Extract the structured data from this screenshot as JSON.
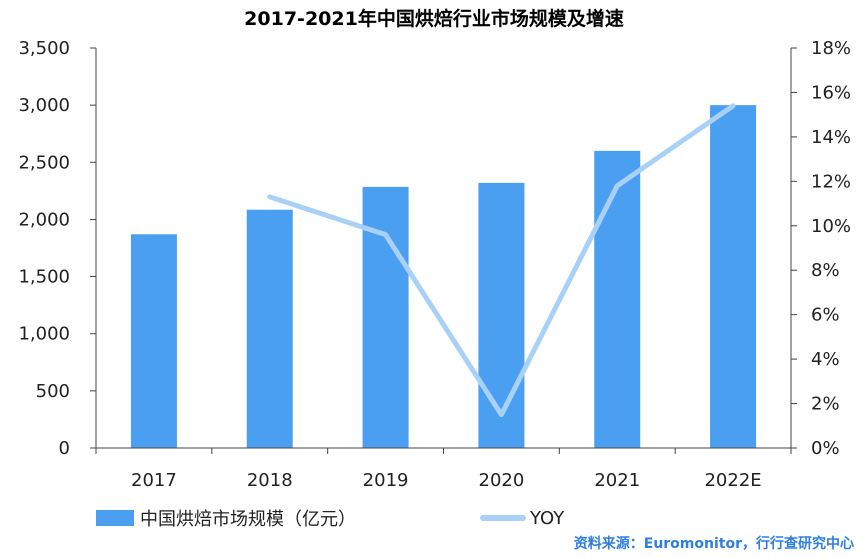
{
  "title": "2017-2021年中国烘焙行业市场规模及增速",
  "source": "资料来源：Euromonitor，行行查研究中心",
  "colors": {
    "bar": "#4a9ff0",
    "line": "#a9d1f7",
    "axis": "#444444",
    "source": "#2f7fe0"
  },
  "chart_data": {
    "type": "bar",
    "categories": [
      "2017",
      "2018",
      "2019",
      "2020",
      "2021",
      "2022E"
    ],
    "series": [
      {
        "name": "中国烘焙市场规模（亿元）",
        "type": "bar",
        "axis": "left",
        "values": [
          1870,
          2085,
          2285,
          2320,
          2600,
          3000
        ]
      },
      {
        "name": "YOY",
        "type": "line",
        "axis": "right",
        "values": [
          null,
          11.3,
          9.6,
          1.5,
          11.8,
          15.4
        ]
      }
    ],
    "y_left": {
      "min": 0,
      "max": 3500,
      "step": 500,
      "tick_labels": [
        "0",
        "500",
        "1,000",
        "1,500",
        "2,000",
        "2,500",
        "3,000",
        "3,500"
      ]
    },
    "y_right": {
      "min": 0,
      "max": 18,
      "step": 2,
      "tick_labels": [
        "0%",
        "2%",
        "4%",
        "6%",
        "8%",
        "10%",
        "12%",
        "14%",
        "16%",
        "18%"
      ]
    },
    "grid": false,
    "legend_position": "bottom-left"
  }
}
